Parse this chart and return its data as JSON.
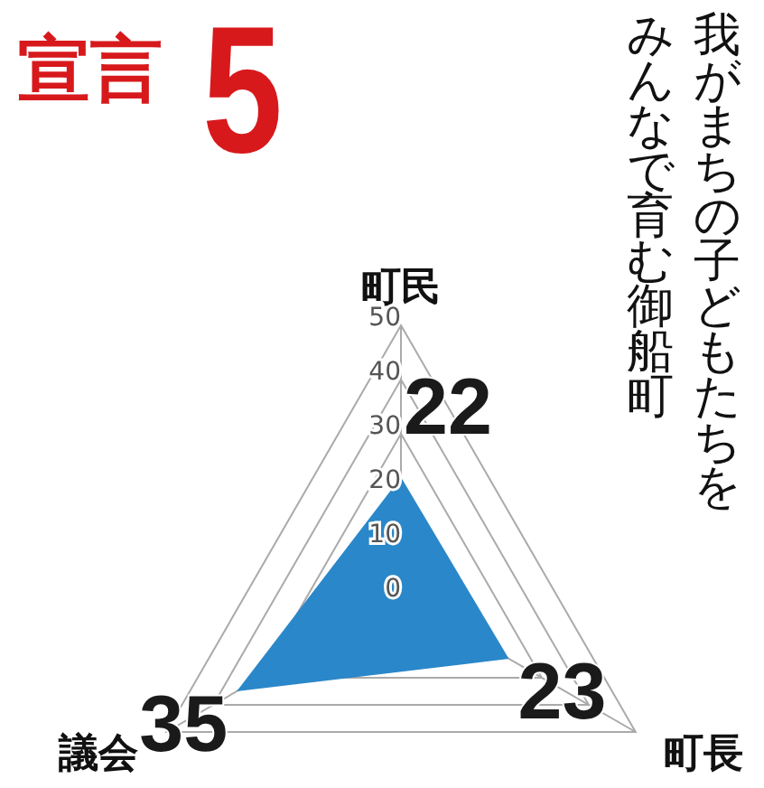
{
  "chart_data": {
    "type": "radar",
    "title": "宣言",
    "subtitle": "5",
    "annotations": [
      "我がまちの子どもたちをみんなで育む御船町"
    ],
    "categories": [
      "町民",
      "町長",
      "議会"
    ],
    "series": [
      {
        "color": "#2a87c9",
        "values": [
          22,
          23,
          35
        ]
      }
    ],
    "ylim": [
      0,
      50
    ],
    "yticks": [
      0,
      10,
      20,
      30,
      40,
      50
    ],
    "grid": true,
    "data_labels": true
  }
}
